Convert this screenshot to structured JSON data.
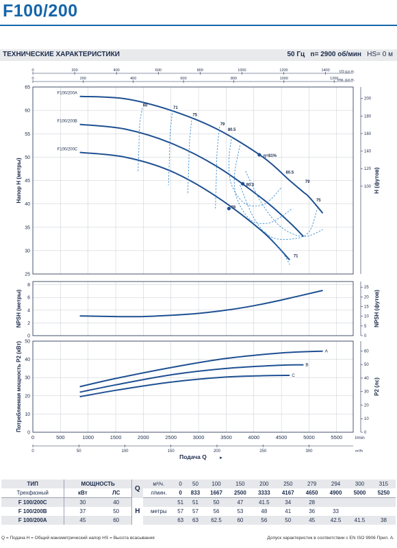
{
  "title": "F100/200",
  "subtitle": "ТЕХНИЧЕСКИЕ ХАРАКТЕРИСТИКИ",
  "conditions": {
    "freq": "50 Гц",
    "speed": "n= 2900  об/мин",
    "hs": "HS= 0 м"
  },
  "top_axis": {
    "gpm_unit": "US g.p.m.",
    "impgpm_unit": "Imp. g.p.m.",
    "gpm_ticks": [
      "0",
      "200",
      "400",
      "600",
      "800",
      "1000",
      "1200",
      "1400"
    ],
    "impgpm_ticks": [
      "0",
      "200",
      "400",
      "600",
      "800",
      "1000",
      "1200"
    ]
  },
  "bottom_axis": {
    "lmin_unit": "l/min",
    "m3h_unit": "m³/h",
    "label": "Подача  Q",
    "lmin_ticks": [
      "0",
      "500",
      "1000",
      "1500",
      "2000",
      "2500",
      "3000",
      "3500",
      "4000",
      "4500",
      "5000",
      "5500"
    ],
    "m3h_ticks": [
      "0",
      "50",
      "100",
      "150",
      "200",
      "250",
      "300"
    ]
  },
  "chart_data": [
    {
      "type": "line",
      "ylabel": "Напор H (метры)",
      "ylabel_right": "H (футов)",
      "xlim": [
        0,
        5800
      ],
      "ylim": [
        25,
        65
      ],
      "y_ticks": [
        "25",
        "30",
        "35",
        "40",
        "45",
        "50",
        "55",
        "60",
        "65"
      ],
      "y2_ticks": [
        "100",
        "120",
        "140",
        "160",
        "180",
        "200"
      ],
      "series": [
        {
          "name": "F100/200A",
          "x": [
            850,
            1667,
            2500,
            3333,
            4167,
            4650,
            4900,
            5000,
            5250
          ],
          "values": [
            63,
            62.5,
            60,
            56,
            50,
            45,
            42.5,
            41.5,
            38
          ]
        },
        {
          "name": "F100/200B",
          "x": [
            850,
            1667,
            2500,
            3333,
            4167,
            4650,
            4900
          ],
          "values": [
            57,
            56,
            53,
            48,
            41,
            36,
            33
          ]
        },
        {
          "name": "F100/200C",
          "x": [
            850,
            1667,
            2500,
            3333,
            4167,
            4650
          ],
          "values": [
            51,
            50,
            47,
            41.5,
            34,
            28
          ]
        }
      ],
      "efficiency_labels": [
        "60",
        "71",
        "75",
        "79",
        "80.5",
        "η=81%",
        "80.5",
        "79",
        "75",
        "71",
        "80.5",
        "79"
      ]
    },
    {
      "type": "line",
      "ylabel": "NPSH  (метры)",
      "ylabel_right": "NPSH  (футов)",
      "xlim": [
        0,
        5800
      ],
      "ylim": [
        0,
        8.5
      ],
      "y_ticks": [
        "0",
        "2",
        "4",
        "6",
        "8"
      ],
      "y2_ticks": [
        "0",
        "5",
        "10",
        "15",
        "20",
        "25"
      ],
      "series": [
        {
          "x": [
            850,
            1500,
            2000,
            2500,
            3000,
            3500,
            4000,
            4500,
            5250
          ],
          "values": [
            3.1,
            3.0,
            3.0,
            3.2,
            3.5,
            4.0,
            4.7,
            5.6,
            7.1
          ]
        }
      ]
    },
    {
      "type": "line",
      "ylabel": "Потребляемая мощность P2 (кВт)",
      "ylabel_right": "P2 (лс)",
      "xlim": [
        0,
        5800
      ],
      "ylim": [
        0,
        50
      ],
      "y_ticks": [
        "0",
        "10",
        "20",
        "30",
        "40",
        "50"
      ],
      "y2_ticks": [
        "0",
        "10",
        "20",
        "30",
        "40",
        "50",
        "60"
      ],
      "series": [
        {
          "name": "A",
          "x": [
            850,
            1500,
            2500,
            3500,
            4500,
            5250
          ],
          "values": [
            25,
            29.5,
            35.5,
            40.5,
            43.5,
            44.5
          ]
        },
        {
          "name": "B",
          "x": [
            850,
            1500,
            2500,
            3500,
            4500,
            4900
          ],
          "values": [
            22,
            26,
            31.5,
            35,
            36.8,
            37
          ]
        },
        {
          "name": "C",
          "x": [
            850,
            1500,
            2500,
            3500,
            4300,
            4650
          ],
          "values": [
            19.5,
            23,
            27.5,
            30.3,
            31.1,
            31.2
          ]
        }
      ]
    }
  ],
  "table": {
    "h_type": "ТИП",
    "h_power": "МОЩНОСТЬ",
    "h_q": "Q",
    "q_unit1": "м³/ч.",
    "q_unit2": "л/мин.",
    "h_phase": "Трехфазный",
    "h_kw": "кВт",
    "h_hp": "ЛС",
    "q_m3h": [
      "0",
      "50",
      "100",
      "150",
      "200",
      "250",
      "279",
      "294",
      "300",
      "315"
    ],
    "q_lmin": [
      "0",
      "833",
      "1667",
      "2500",
      "3333",
      "4167",
      "4650",
      "4900",
      "5000",
      "5250"
    ],
    "h_label": "H",
    "h_unit": "метры",
    "rows": [
      {
        "type": "F 100/200C",
        "kw": "30",
        "hp": "40",
        "h": [
          "51",
          "51",
          "50",
          "47",
          "41.5",
          "34",
          "28",
          "",
          "",
          ""
        ]
      },
      {
        "type": "F 100/200B",
        "kw": "37",
        "hp": "50",
        "h": [
          "57",
          "57",
          "56",
          "53",
          "48",
          "41",
          "36",
          "33",
          "",
          ""
        ]
      },
      {
        "type": "F 100/200A",
        "kw": "45",
        "hp": "60",
        "h": [
          "63",
          "63",
          "62.5",
          "60",
          "56",
          "50",
          "45",
          "42.5",
          "41.5",
          "38"
        ]
      }
    ]
  },
  "footer": {
    "left": "Q = Подача  H = Общий манометрический напор  HS = Высота всасывания",
    "right": "Допуск характеристик в соответствии с EN ISO 9906 Прил. A."
  },
  "colors": {
    "curve": "#1d4f91",
    "eff": "#3d8fd0",
    "grid": "#c6c9cf",
    "brand": "#1565a8"
  }
}
